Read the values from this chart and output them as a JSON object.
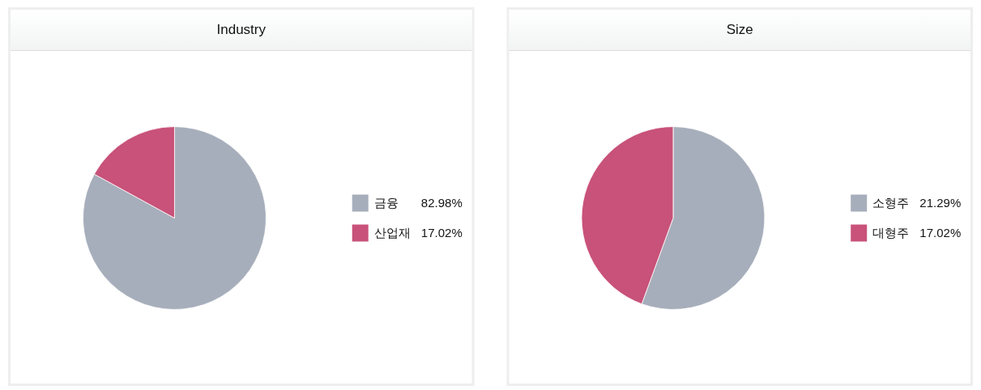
{
  "chart_data": [
    {
      "type": "pie",
      "title": "Industry",
      "categories": [
        "금융",
        "산업재"
      ],
      "values": [
        82.98,
        17.02
      ],
      "colors": [
        "#a7aebb",
        "#c85279"
      ],
      "value_labels": [
        "82.98%",
        "17.02%"
      ],
      "legend": "right"
    },
    {
      "type": "pie",
      "title": "Size",
      "categories": [
        "소형주",
        "대형주"
      ],
      "values": [
        21.29,
        17.02
      ],
      "colors": [
        "#a7aebb",
        "#c85279"
      ],
      "value_labels": [
        "21.29%",
        "17.02%"
      ],
      "legend": "right"
    }
  ]
}
